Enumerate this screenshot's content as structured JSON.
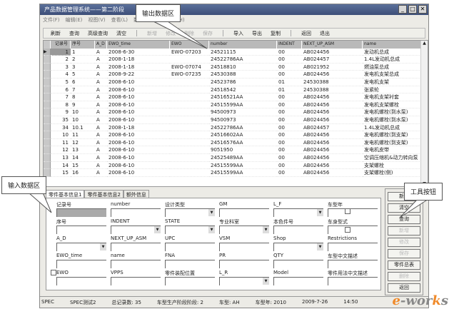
{
  "window": {
    "title": "产品数据管理系统——第二阶段"
  },
  "menu": [
    "文件(F)",
    "编辑(E)",
    "视图(V)",
    "查看(L)",
    "数据管理(D)",
    "帮助(H)"
  ],
  "toolbar": [
    {
      "label": "刷新",
      "enabled": true
    },
    {
      "label": "查询",
      "enabled": true
    },
    {
      "label": "高级查询",
      "enabled": true
    },
    {
      "label": "清空",
      "enabled": true
    },
    {
      "label": "新增",
      "enabled": false
    },
    {
      "label": "修改",
      "enabled": false
    },
    {
      "label": "删除",
      "enabled": false
    },
    {
      "label": "保存",
      "enabled": false
    },
    {
      "label": "导入",
      "enabled": true
    },
    {
      "label": "导出",
      "enabled": true
    },
    {
      "label": "复制",
      "enabled": true
    },
    {
      "label": "返回",
      "enabled": true
    },
    {
      "label": "退出",
      "enabled": true
    }
  ],
  "grid": {
    "columns": [
      "记录号",
      "序号",
      "A_D",
      "EWO_time",
      "EWO",
      "number",
      "INDENT",
      "NEXT_UP_ASM",
      "name"
    ],
    "rows": [
      [
        "1",
        "1",
        "A",
        "2008-6-30",
        "EWO-07203",
        "24521115",
        "00",
        "AB024456",
        "发动机总成"
      ],
      [
        "2",
        "2",
        "A",
        "2008-1-18",
        "",
        "24522786AA",
        "00",
        "AB024457",
        "1.4L发动机总成"
      ],
      [
        "3",
        "3",
        "A",
        "2008-1-18",
        "EWO-07074",
        "24518810",
        "00",
        "AB021952",
        "燃油泵总成"
      ],
      [
        "4",
        "5",
        "A",
        "2008-9-22",
        "EWO-07235",
        "24530388",
        "00",
        "AB024456",
        "发电机支架总成"
      ],
      [
        "5",
        "6",
        "A",
        "2008-6-10",
        "",
        "24523786",
        "01",
        "24530388",
        "发电机支架"
      ],
      [
        "6",
        "7",
        "A",
        "2008-6-10",
        "",
        "24518542",
        "01",
        "24530388",
        "张紧轮"
      ],
      [
        "7",
        "8",
        "A",
        "2008-6-10",
        "",
        "24516521AA",
        "00",
        "AB024456",
        "发电机支架衬套"
      ],
      [
        "8",
        "9",
        "A",
        "2008-6-10",
        "",
        "24515599AA",
        "00",
        "AB024456",
        "发电机支架螺栓"
      ],
      [
        "9",
        "10",
        "A",
        "2008-6-10",
        "",
        "94500973",
        "00",
        "AB024456",
        "发电机螺栓(到水泵)"
      ],
      [
        "35",
        "10",
        "A",
        "2008-6-10",
        "",
        "94500973",
        "00",
        "AB024456",
        "发电机螺栓(到水泵)"
      ],
      [
        "34",
        "10.1",
        "A",
        "2008-1-18",
        "",
        "24522786AA",
        "00",
        "AB024457",
        "1.4L发动机总成"
      ],
      [
        "10",
        "11",
        "A",
        "2008-6-10",
        "",
        "24516602AA",
        "00",
        "AB024456",
        "发电机螺栓(到支架)"
      ],
      [
        "11",
        "12",
        "A",
        "2008-6-10",
        "",
        "24516576AA",
        "00",
        "AB024456",
        "发电机螺栓(到支架)"
      ],
      [
        "12",
        "13",
        "A",
        "2008-6-10",
        "",
        "9051950",
        "00",
        "AB024456",
        "发电机皮带"
      ],
      [
        "13",
        "14",
        "A",
        "2008-6-10",
        "",
        "24525489AA",
        "00",
        "AB024456",
        "空调压缩机&动力转向泵"
      ],
      [
        "14",
        "15",
        "A",
        "2008-6-10",
        "",
        "24515599AA",
        "00",
        "AB024456",
        "支架螺栓"
      ],
      [
        "15",
        "16",
        "A",
        "2008-6-10",
        "",
        "24515599AA",
        "00",
        "AB024456",
        "支架螺栓(侧)"
      ]
    ]
  },
  "tabs": [
    "零件基本信息1",
    "零件基本信息2",
    "额外信息"
  ],
  "form": {
    "fields": [
      {
        "label": "记录号",
        "type": "readonly"
      },
      {
        "label": "序号",
        "type": "text"
      },
      {
        "label": "A_D",
        "type": "select"
      },
      {
        "label": "EWO_time",
        "type": "text"
      },
      {
        "label": "EWO",
        "type": "text"
      },
      {
        "label": "number",
        "type": "text"
      },
      {
        "label": "INDENT",
        "type": "select"
      },
      {
        "label": "NEXT_UP_ASM",
        "type": "text"
      },
      {
        "label": "name",
        "type": "text"
      },
      {
        "label": "VPPS",
        "type": "text"
      },
      {
        "label": "设计类型",
        "type": "select"
      },
      {
        "label": "STATE",
        "type": "select"
      },
      {
        "label": "UPC",
        "type": "text"
      },
      {
        "label": "FNA",
        "type": "text"
      },
      {
        "label": "零件装配位置",
        "type": "text"
      },
      {
        "label": "GM",
        "type": "text"
      },
      {
        "label": "专业科室",
        "type": "select"
      },
      {
        "label": "VSM",
        "type": "text"
      },
      {
        "label": "PR",
        "type": "text"
      },
      {
        "label": "L_R",
        "type": "select"
      },
      {
        "label": "L_F",
        "type": "select"
      },
      {
        "label": "本色件号",
        "type": "text"
      },
      {
        "label": "Shop",
        "type": "select"
      },
      {
        "label": "QTY",
        "type": "text"
      },
      {
        "label": "Model",
        "type": "text"
      },
      {
        "label": "车型年",
        "type": "text"
      },
      {
        "label": "车身型式",
        "type": "text"
      },
      {
        "label": "Restrictions",
        "type": "text"
      },
      {
        "label": "车型中文描述",
        "type": "text"
      },
      {
        "label": "零件用法中文描述",
        "type": "text"
      }
    ]
  },
  "side_buttons": [
    {
      "label": "新增",
      "enabled": true
    },
    {
      "label": "清空",
      "enabled": true
    },
    {
      "label": "查询",
      "enabled": true
    },
    {
      "label": "新增",
      "enabled": false
    },
    {
      "label": "修改",
      "enabled": false
    },
    {
      "label": "保存",
      "enabled": false
    },
    {
      "label": "零件总表",
      "enabled": true
    },
    {
      "label": "删除",
      "enabled": false
    },
    {
      "label": "返回",
      "enabled": true
    }
  ],
  "status": [
    "SPEC",
    "SPEC测试2",
    "总记录数: 35",
    "车型生产阶段阶段: 2",
    "车型: AH",
    "车型年: 2010",
    "2009-7-26",
    "14:50"
  ],
  "callouts": {
    "output": "输出数据区",
    "input": "输入数据区",
    "tools": "工具按钮"
  },
  "logo": {
    "text": "e-works",
    "accent": "#f08a2a"
  }
}
